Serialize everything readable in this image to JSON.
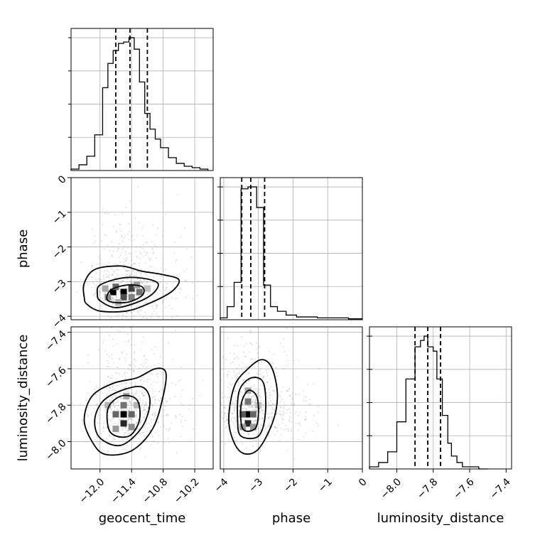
{
  "chart_data": {
    "type": "corner",
    "grid": true,
    "parameters": [
      {
        "key": "geocent_time",
        "label": "geocent_time",
        "range": [
          -12.55,
          -9.85
        ],
        "ticks": [
          -12.0,
          -11.4,
          -10.8,
          -10.2
        ],
        "tick_labels": [
          "−12.0",
          "−11.4",
          "−10.8",
          "−10.2"
        ],
        "quantiles": [
          -11.7,
          -11.43,
          -11.1
        ],
        "hist": {
          "edges": [
            -12.55,
            -12.4,
            -12.25,
            -12.1,
            -11.95,
            -11.85,
            -11.75,
            -11.65,
            -11.55,
            -11.45,
            -11.35,
            -11.25,
            -11.15,
            -11.05,
            -10.95,
            -10.85,
            -10.7,
            -10.55,
            -10.4,
            -10.25,
            -10.1,
            -9.95
          ],
          "counts": [
            1,
            4,
            10,
            25,
            58,
            75,
            84,
            89,
            90,
            93,
            85,
            62,
            40,
            29,
            22,
            16,
            9,
            5,
            3,
            2,
            1
          ]
        }
      },
      {
        "key": "phase",
        "label": "phase",
        "range": [
          -4.1,
          0.0
        ],
        "ticks": [
          -4,
          -3,
          -2,
          -1,
          0
        ],
        "tick_labels": [
          "−4",
          "−3",
          "−2",
          "−1",
          "0"
        ],
        "quantiles": [
          -3.48,
          -3.22,
          -2.82
        ],
        "hist": {
          "edges": [
            -4.1,
            -3.9,
            -3.7,
            -3.5,
            -3.3,
            -3.05,
            -2.85,
            -2.65,
            -2.45,
            -2.2,
            -1.9,
            -1.6,
            -1.3,
            -1.0,
            -0.7,
            -0.4,
            0.0
          ],
          "counts": [
            2,
            14,
            40,
            140,
            142,
            120,
            37,
            14,
            9,
            5,
            3,
            3,
            2,
            2,
            2,
            1
          ]
        }
      },
      {
        "key": "luminosity_distance",
        "label": "luminosity_distance",
        "range": [
          -8.15,
          -7.37
        ],
        "ticks": [
          -8.0,
          -7.8,
          -7.6,
          -7.4
        ],
        "tick_labels": [
          "−8.0",
          "−7.8",
          "−7.6",
          "−7.4"
        ],
        "quantiles": [
          -7.9,
          -7.83,
          -7.76
        ],
        "hist": {
          "edges": [
            -8.15,
            -8.1,
            -8.05,
            -8.0,
            -7.95,
            -7.9,
            -7.87,
            -7.85,
            -7.83,
            -7.8,
            -7.78,
            -7.75,
            -7.72,
            -7.7,
            -7.67,
            -7.64,
            -7.6,
            -7.55,
            -7.5
          ],
          "counts": [
            1,
            3,
            8,
            22,
            42,
            57,
            60,
            62,
            57,
            55,
            42,
            25,
            12,
            6,
            3,
            1,
            1,
            0
          ]
        }
      }
    ],
    "pairs": [
      {
        "x": "geocent_time",
        "y": "phase",
        "y_ticks": [
          0,
          -1,
          -2,
          -3,
          -4
        ],
        "y_tick_labels": [
          "0",
          "−1",
          "−2",
          "−3",
          "−4"
        ],
        "mode": [
          -11.55,
          -3.3
        ],
        "contours": [
          [
            [
              -12.25,
              -3.65
            ],
            [
              -12.0,
              -3.85
            ],
            [
              -11.5,
              -3.85
            ],
            [
              -11.1,
              -3.65
            ],
            [
              -10.65,
              -3.3
            ],
            [
              -10.5,
              -2.95
            ],
            [
              -10.8,
              -2.8
            ],
            [
              -11.2,
              -2.7
            ],
            [
              -11.6,
              -2.55
            ],
            [
              -12.1,
              -2.65
            ],
            [
              -12.3,
              -3.05
            ],
            [
              -12.3,
              -3.45
            ]
          ],
          [
            [
              -12.0,
              -3.55
            ],
            [
              -11.7,
              -3.75
            ],
            [
              -11.3,
              -3.6
            ],
            [
              -11.0,
              -3.35
            ],
            [
              -10.9,
              -3.05
            ],
            [
              -11.2,
              -2.9
            ],
            [
              -11.6,
              -2.9
            ],
            [
              -12.0,
              -3.1
            ],
            [
              -12.05,
              -3.35
            ]
          ],
          [
            [
              -11.85,
              -3.55
            ],
            [
              -11.5,
              -3.6
            ],
            [
              -11.2,
              -3.4
            ],
            [
              -11.2,
              -3.15
            ],
            [
              -11.5,
              -3.1
            ],
            [
              -11.8,
              -3.25
            ]
          ]
        ],
        "density": [
          [
            -11.55,
            -3.3,
            1.0
          ],
          [
            -11.75,
            -3.3,
            1.0
          ],
          [
            -11.4,
            -3.2,
            0.75
          ],
          [
            -11.55,
            -3.45,
            0.7
          ],
          [
            -11.7,
            -3.15,
            0.6
          ],
          [
            -11.25,
            -3.3,
            0.55
          ],
          [
            -11.85,
            -3.45,
            0.45
          ],
          [
            -11.4,
            -3.45,
            0.5
          ],
          [
            -11.3,
            -3.1,
            0.4
          ],
          [
            -11.9,
            -3.2,
            0.35
          ],
          [
            -11.1,
            -3.2,
            0.25
          ],
          [
            -11.65,
            -3.6,
            0.3
          ]
        ]
      },
      {
        "x": "geocent_time",
        "y": "luminosity_distance",
        "y_ticks": [
          -7.4,
          -7.6,
          -7.8,
          -8.0
        ],
        "y_tick_labels": [
          "−7.4",
          "−7.6",
          "−7.8",
          "−8.0"
        ],
        "mode": [
          -11.55,
          -7.85
        ],
        "contours": [
          [
            [
              -12.15,
              -8.0
            ],
            [
              -11.9,
              -8.07
            ],
            [
              -11.4,
              -8.05
            ],
            [
              -11.0,
              -7.93
            ],
            [
              -10.8,
              -7.75
            ],
            [
              -10.75,
              -7.62
            ],
            [
              -10.95,
              -7.6
            ],
            [
              -11.3,
              -7.65
            ],
            [
              -11.75,
              -7.68
            ],
            [
              -12.15,
              -7.75
            ],
            [
              -12.3,
              -7.88
            ]
          ],
          [
            [
              -12.0,
              -7.98
            ],
            [
              -11.6,
              -8.02
            ],
            [
              -11.2,
              -7.92
            ],
            [
              -11.05,
              -7.78
            ],
            [
              -11.2,
              -7.7
            ],
            [
              -11.6,
              -7.72
            ],
            [
              -11.95,
              -7.78
            ],
            [
              -12.1,
              -7.88
            ]
          ],
          [
            [
              -11.8,
              -7.95
            ],
            [
              -11.45,
              -7.97
            ],
            [
              -11.25,
              -7.88
            ],
            [
              -11.3,
              -7.77
            ],
            [
              -11.6,
              -7.75
            ],
            [
              -11.85,
              -7.82
            ]
          ]
        ],
        "density": [
          [
            -11.55,
            -7.85,
            1.0
          ],
          [
            -11.55,
            -7.9,
            0.85
          ],
          [
            -11.4,
            -7.85,
            0.6
          ],
          [
            -11.7,
            -7.85,
            0.6
          ],
          [
            -11.55,
            -7.8,
            0.55
          ],
          [
            -11.4,
            -7.92,
            0.45
          ],
          [
            -11.7,
            -7.93,
            0.4
          ],
          [
            -11.3,
            -7.8,
            0.3
          ],
          [
            -11.85,
            -7.8,
            0.3
          ],
          [
            -11.5,
            -7.75,
            0.35
          ]
        ]
      },
      {
        "x": "phase",
        "y": "luminosity_distance",
        "mode": [
          -3.3,
          -7.85
        ],
        "contours": [
          [
            [
              -3.55,
              -8.05
            ],
            [
              -3.05,
              -8.05
            ],
            [
              -2.6,
              -7.9
            ],
            [
              -2.45,
              -7.75
            ],
            [
              -2.6,
              -7.6
            ],
            [
              -2.9,
              -7.55
            ],
            [
              -3.3,
              -7.6
            ],
            [
              -3.7,
              -7.7
            ],
            [
              -3.85,
              -7.9
            ]
          ],
          [
            [
              -3.5,
              -7.97
            ],
            [
              -3.0,
              -7.97
            ],
            [
              -2.8,
              -7.85
            ],
            [
              -2.85,
              -7.68
            ],
            [
              -3.2,
              -7.65
            ],
            [
              -3.55,
              -7.72
            ],
            [
              -3.6,
              -7.88
            ]
          ],
          [
            [
              -3.45,
              -7.93
            ],
            [
              -3.1,
              -7.93
            ],
            [
              -3.0,
              -7.85
            ],
            [
              -3.05,
              -7.75
            ],
            [
              -3.3,
              -7.72
            ],
            [
              -3.5,
              -7.8
            ]
          ]
        ],
        "density": [
          [
            -3.3,
            -7.85,
            1.0
          ],
          [
            -3.3,
            -7.9,
            0.85
          ],
          [
            -3.45,
            -7.85,
            0.65
          ],
          [
            -3.15,
            -7.85,
            0.6
          ],
          [
            -3.3,
            -7.78,
            0.55
          ],
          [
            -3.15,
            -7.92,
            0.4
          ],
          [
            -3.45,
            -7.92,
            0.4
          ],
          [
            -3.3,
            -7.72,
            0.35
          ],
          [
            -3.0,
            -7.8,
            0.25
          ]
        ]
      }
    ]
  }
}
